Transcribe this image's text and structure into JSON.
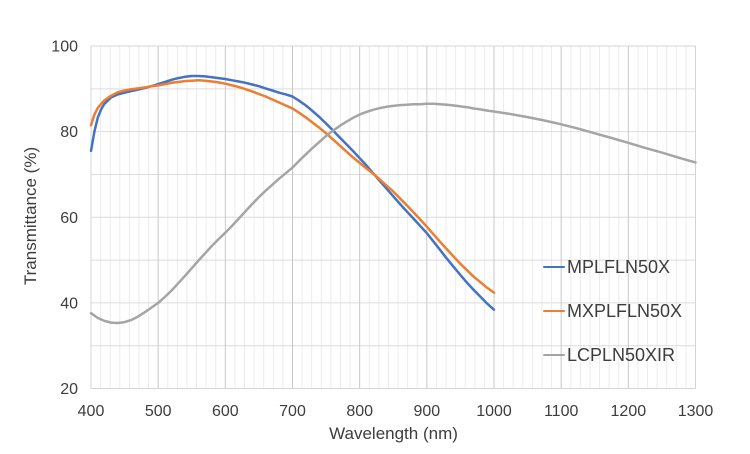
{
  "chart_data": {
    "type": "line",
    "title": "",
    "xlabel": "Wavelength (nm)",
    "ylabel": "Transmittance (%)",
    "xlim": [
      400,
      1300
    ],
    "ylim": [
      20,
      100
    ],
    "x_ticks": [
      400,
      500,
      600,
      700,
      800,
      900,
      1000,
      1100,
      1200,
      1300
    ],
    "y_ticks": [
      20,
      40,
      60,
      80,
      100
    ],
    "x_major_step": 100,
    "x_minor_per_major": 7,
    "y_grid_step": 10,
    "grid": true,
    "legend_position": "inside-right",
    "colors": {
      "grid_minor_v": "#ececec",
      "grid_major_v": "#c8c8c8",
      "grid_h": "#dcdcdc",
      "frame": "#d4d4d4",
      "text": "#3d3d3d"
    },
    "series": [
      {
        "name": "MPLFLN50X",
        "color": "#4472C4",
        "points": [
          [
            400,
            75.5
          ],
          [
            405,
            80.0
          ],
          [
            410,
            83.2
          ],
          [
            415,
            85.2
          ],
          [
            420,
            86.5
          ],
          [
            430,
            88.0
          ],
          [
            440,
            88.7
          ],
          [
            450,
            89.1
          ],
          [
            460,
            89.5
          ],
          [
            470,
            89.8
          ],
          [
            480,
            90.2
          ],
          [
            490,
            90.6
          ],
          [
            500,
            91.1
          ],
          [
            510,
            91.6
          ],
          [
            520,
            92.1
          ],
          [
            530,
            92.5
          ],
          [
            540,
            92.8
          ],
          [
            550,
            93.0
          ],
          [
            560,
            93.0
          ],
          [
            570,
            92.9
          ],
          [
            580,
            92.7
          ],
          [
            590,
            92.5
          ],
          [
            600,
            92.3
          ],
          [
            610,
            92.0
          ],
          [
            620,
            91.7
          ],
          [
            630,
            91.4
          ],
          [
            640,
            91.0
          ],
          [
            650,
            90.6
          ],
          [
            660,
            90.1
          ],
          [
            670,
            89.6
          ],
          [
            680,
            89.1
          ],
          [
            690,
            88.7
          ],
          [
            700,
            88.2
          ],
          [
            710,
            87.2
          ],
          [
            720,
            86.1
          ],
          [
            730,
            84.8
          ],
          [
            740,
            83.4
          ],
          [
            750,
            81.9
          ],
          [
            760,
            80.3
          ],
          [
            770,
            78.7
          ],
          [
            780,
            77.1
          ],
          [
            790,
            75.5
          ],
          [
            800,
            73.8
          ],
          [
            810,
            72.1
          ],
          [
            820,
            70.3
          ],
          [
            830,
            68.5
          ],
          [
            840,
            66.7
          ],
          [
            850,
            64.9
          ],
          [
            860,
            63.1
          ],
          [
            870,
            61.4
          ],
          [
            880,
            59.7
          ],
          [
            890,
            58.0
          ],
          [
            900,
            56.3
          ],
          [
            910,
            54.3
          ],
          [
            920,
            52.3
          ],
          [
            930,
            50.3
          ],
          [
            940,
            48.4
          ],
          [
            950,
            46.5
          ],
          [
            960,
            44.7
          ],
          [
            970,
            43.0
          ],
          [
            980,
            41.4
          ],
          [
            990,
            39.8
          ],
          [
            1000,
            38.4
          ]
        ]
      },
      {
        "name": "MXPLFLN50X",
        "color": "#ED7D31",
        "points": [
          [
            400,
            81.5
          ],
          [
            405,
            84.0
          ],
          [
            410,
            85.5
          ],
          [
            415,
            86.5
          ],
          [
            420,
            87.3
          ],
          [
            430,
            88.4
          ],
          [
            440,
            89.2
          ],
          [
            450,
            89.6
          ],
          [
            460,
            89.9
          ],
          [
            470,
            90.1
          ],
          [
            480,
            90.3
          ],
          [
            490,
            90.6
          ],
          [
            500,
            90.8
          ],
          [
            510,
            91.1
          ],
          [
            520,
            91.4
          ],
          [
            530,
            91.6
          ],
          [
            540,
            91.8
          ],
          [
            550,
            91.9
          ],
          [
            560,
            92.0
          ],
          [
            570,
            91.9
          ],
          [
            580,
            91.7
          ],
          [
            590,
            91.5
          ],
          [
            600,
            91.2
          ],
          [
            610,
            90.8
          ],
          [
            620,
            90.4
          ],
          [
            630,
            89.9
          ],
          [
            640,
            89.4
          ],
          [
            650,
            88.8
          ],
          [
            660,
            88.2
          ],
          [
            670,
            87.5
          ],
          [
            680,
            86.8
          ],
          [
            690,
            86.1
          ],
          [
            700,
            85.4
          ],
          [
            710,
            84.4
          ],
          [
            720,
            83.3
          ],
          [
            730,
            82.1
          ],
          [
            740,
            80.9
          ],
          [
            750,
            79.6
          ],
          [
            760,
            78.2
          ],
          [
            770,
            76.8
          ],
          [
            780,
            75.4
          ],
          [
            790,
            74.0
          ],
          [
            800,
            72.7
          ],
          [
            810,
            71.4
          ],
          [
            820,
            70.2
          ],
          [
            830,
            68.8
          ],
          [
            840,
            67.4
          ],
          [
            850,
            66.0
          ],
          [
            860,
            64.4
          ],
          [
            870,
            62.8
          ],
          [
            880,
            61.2
          ],
          [
            890,
            59.5
          ],
          [
            900,
            57.8
          ],
          [
            910,
            56.0
          ],
          [
            920,
            54.2
          ],
          [
            930,
            52.5
          ],
          [
            940,
            50.8
          ],
          [
            950,
            49.1
          ],
          [
            960,
            47.6
          ],
          [
            970,
            46.1
          ],
          [
            980,
            44.8
          ],
          [
            990,
            43.5
          ],
          [
            1000,
            42.4
          ]
        ]
      },
      {
        "name": "LCPLN50XIR",
        "color": "#A5A5A5",
        "points": [
          [
            400,
            37.6
          ],
          [
            410,
            36.5
          ],
          [
            420,
            35.8
          ],
          [
            430,
            35.4
          ],
          [
            440,
            35.3
          ],
          [
            450,
            35.5
          ],
          [
            460,
            36.0
          ],
          [
            470,
            36.8
          ],
          [
            480,
            37.8
          ],
          [
            490,
            38.9
          ],
          [
            500,
            40.0
          ],
          [
            510,
            41.4
          ],
          [
            520,
            42.9
          ],
          [
            530,
            44.6
          ],
          [
            540,
            46.3
          ],
          [
            550,
            48.1
          ],
          [
            560,
            49.9
          ],
          [
            570,
            51.6
          ],
          [
            580,
            53.3
          ],
          [
            590,
            54.9
          ],
          [
            600,
            56.4
          ],
          [
            610,
            58.0
          ],
          [
            620,
            59.7
          ],
          [
            630,
            61.4
          ],
          [
            640,
            63.1
          ],
          [
            650,
            64.7
          ],
          [
            660,
            66.2
          ],
          [
            670,
            67.6
          ],
          [
            680,
            69.0
          ],
          [
            690,
            70.3
          ],
          [
            700,
            71.6
          ],
          [
            710,
            73.2
          ],
          [
            720,
            74.7
          ],
          [
            730,
            76.2
          ],
          [
            740,
            77.6
          ],
          [
            750,
            79.0
          ],
          [
            760,
            80.2
          ],
          [
            770,
            81.3
          ],
          [
            780,
            82.3
          ],
          [
            790,
            83.2
          ],
          [
            800,
            84.0
          ],
          [
            810,
            84.6
          ],
          [
            820,
            85.1
          ],
          [
            830,
            85.5
          ],
          [
            840,
            85.8
          ],
          [
            850,
            86.0
          ],
          [
            860,
            86.2
          ],
          [
            870,
            86.3
          ],
          [
            880,
            86.4
          ],
          [
            890,
            86.4
          ],
          [
            900,
            86.5
          ],
          [
            910,
            86.5
          ],
          [
            920,
            86.4
          ],
          [
            930,
            86.3
          ],
          [
            940,
            86.1
          ],
          [
            950,
            85.9
          ],
          [
            960,
            85.7
          ],
          [
            970,
            85.4
          ],
          [
            980,
            85.2
          ],
          [
            990,
            84.9
          ],
          [
            1000,
            84.7
          ],
          [
            1025,
            84.1
          ],
          [
            1050,
            83.4
          ],
          [
            1075,
            82.6
          ],
          [
            1100,
            81.7
          ],
          [
            1125,
            80.7
          ],
          [
            1150,
            79.6
          ],
          [
            1175,
            78.5
          ],
          [
            1200,
            77.4
          ],
          [
            1225,
            76.2
          ],
          [
            1250,
            75.1
          ],
          [
            1275,
            73.9
          ],
          [
            1300,
            72.8
          ]
        ]
      }
    ]
  }
}
